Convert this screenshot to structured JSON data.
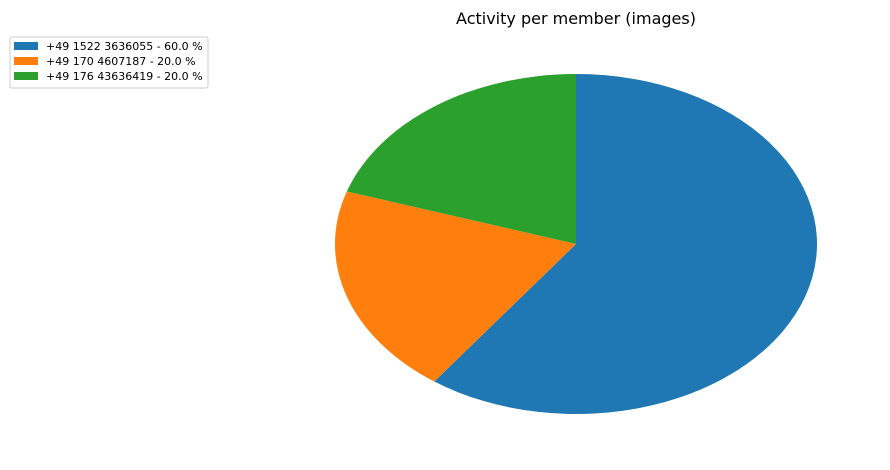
{
  "chart_data": {
    "type": "pie",
    "title": "Activity per member (images)",
    "categories": [
      "+49 1522 3636055",
      "+49 170 4607187",
      "+49 176 43636419"
    ],
    "values": [
      60.0,
      20.0,
      20.0
    ],
    "unit": "%",
    "legend_labels": [
      "+49 1522 3636055 - 60.0 %",
      "+49 170 4607187 - 20.0 %",
      "+49 176 43636419 - 20.0 %"
    ],
    "colors": [
      "#1f77b4",
      "#ff7f0e",
      "#2ca02c"
    ],
    "start_angle_deg": 90,
    "direction": "clockwise",
    "legend_position": "top-left"
  }
}
